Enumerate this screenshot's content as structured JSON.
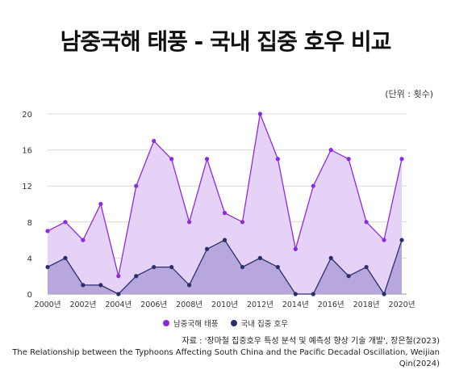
{
  "chart_data": {
    "type": "area",
    "title": "남중국해 태풍 - 국내 집중 호우 비교",
    "unit_label": "(단위 : 횟수)",
    "x": [
      2000,
      2001,
      2002,
      2003,
      2004,
      2005,
      2006,
      2007,
      2008,
      2009,
      2010,
      2011,
      2012,
      2013,
      2014,
      2015,
      2016,
      2017,
      2018,
      2019,
      2020
    ],
    "x_tick_labels": [
      "2000년",
      "2002년",
      "2004년",
      "2006년",
      "2008년",
      "2010년",
      "2012년",
      "2014년",
      "2016년",
      "2018년",
      "2020년"
    ],
    "y_ticks": [
      "0",
      "4",
      "8",
      "12",
      "16",
      "20"
    ],
    "ylim": [
      0,
      20
    ],
    "grid": true,
    "legend_position": "bottom",
    "series": [
      {
        "name": "남중국해 태풍",
        "color": "#8a2be2",
        "fill": "#e6d2f7",
        "values": [
          7,
          8,
          6,
          10,
          2,
          12,
          17,
          15,
          8,
          15,
          9,
          8,
          20,
          15,
          5,
          12,
          16,
          15,
          8,
          6,
          15
        ]
      },
      {
        "name": "국내 집중 호우",
        "color": "#2a2f6b",
        "fill": "#b3a2d8",
        "values": [
          3,
          4,
          1,
          1,
          0,
          2,
          3,
          3,
          1,
          5,
          6,
          3,
          4,
          3,
          0,
          0,
          4,
          2,
          3,
          0,
          6
        ]
      }
    ]
  },
  "source": {
    "line1": "자료 : '장마철 집중호우 특성 분석 및 예측성 향상 기술 개발', 장은철(2023)",
    "line2": "The Relationship between the Typhoons Affecting South China and the Pacific Decadal Oscillation, Weijian Qin(2024)"
  }
}
